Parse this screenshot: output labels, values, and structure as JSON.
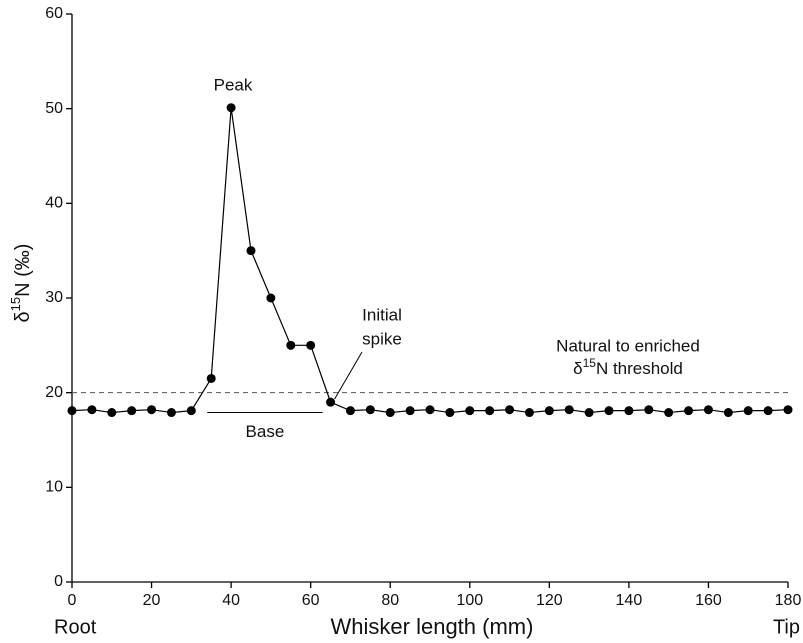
{
  "chart_data": {
    "type": "line",
    "x_label": "Whisker length (mm)",
    "y_label": [
      "δ",
      "15",
      "N (‰)"
    ],
    "x_end_labels": [
      "Root",
      "Tip"
    ],
    "x": [
      0,
      5,
      10,
      15,
      20,
      25,
      30,
      35,
      40,
      45,
      50,
      55,
      60,
      65,
      70,
      75,
      80,
      85,
      90,
      95,
      100,
      105,
      110,
      115,
      120,
      125,
      130,
      135,
      140,
      145,
      150,
      155,
      160,
      165,
      170,
      175,
      180
    ],
    "series": [
      {
        "color": "#000000",
        "values": [
          18.1,
          18.2,
          17.9,
          18.1,
          18.2,
          17.9,
          18.1,
          21.5,
          50.1,
          35,
          30,
          25,
          25,
          19,
          18.1,
          18.2,
          17.9,
          18.1,
          18.2,
          17.9,
          18.1,
          18.1,
          18.2,
          17.9,
          18.1,
          18.2,
          17.9,
          18.1,
          18.1,
          18.2,
          17.9,
          18.1,
          18.2,
          17.9,
          18.1,
          18.1,
          18.2
        ]
      }
    ],
    "xlim": [
      0,
      180
    ],
    "xticks": [
      0,
      20,
      40,
      60,
      80,
      100,
      120,
      140,
      160,
      180
    ],
    "ylim": [
      0,
      60
    ],
    "yticks": [
      0,
      10,
      20,
      30,
      40,
      50,
      60
    ],
    "threshold": {
      "value": 20,
      "label": [
        "Natural to enriched",
        "δ",
        "15",
        "N  threshold"
      ]
    },
    "annotations": {
      "peak": "Peak",
      "initial_spike": [
        "Initial",
        "spike"
      ],
      "base": {
        "label": "Base",
        "x": [
          34,
          63
        ],
        "y": 17.9
      }
    }
  }
}
